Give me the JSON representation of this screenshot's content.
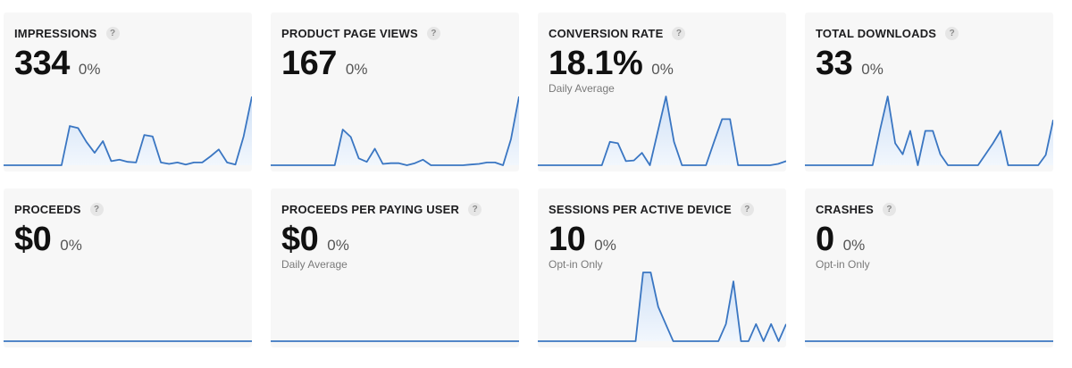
{
  "colors": {
    "card_background": "#f7f7f7",
    "line": "#3a76c2",
    "fill_top": "#cfe0f6",
    "fill_bottom": "#f2f7fd"
  },
  "help_icon_glyph": "?",
  "cards": [
    {
      "title": "IMPRESSIONS",
      "value": "334",
      "change": "0%",
      "subtitle": "",
      "spark": [
        0,
        0,
        0,
        0,
        0,
        0,
        0,
        0,
        0.57,
        0.54,
        0.34,
        0.18,
        0.35,
        0.06,
        0.08,
        0.05,
        0.04,
        0.44,
        0.42,
        0.04,
        0.02,
        0.04,
        0.01,
        0.04,
        0.04,
        0.13,
        0.23,
        0.04,
        0.01,
        0.42,
        1.0
      ]
    },
    {
      "title": "PRODUCT PAGE VIEWS",
      "value": "167",
      "change": "0%",
      "subtitle": "",
      "spark": [
        0,
        0,
        0,
        0,
        0,
        0,
        0,
        0,
        0,
        0.52,
        0.41,
        0.1,
        0.05,
        0.24,
        0.02,
        0.03,
        0.03,
        0,
        0.03,
        0.08,
        0,
        0,
        0,
        0,
        0,
        0.01,
        0.02,
        0.04,
        0.04,
        0,
        0.38,
        1.0
      ]
    },
    {
      "title": "CONVERSION RATE",
      "value": "18.1%",
      "change": "0%",
      "subtitle": "Daily Average",
      "spark": [
        0,
        0,
        0,
        0,
        0,
        0,
        0,
        0,
        0,
        0.34,
        0.32,
        0.06,
        0.07,
        0.18,
        0,
        0.5,
        1.0,
        0.34,
        0,
        0,
        0,
        0,
        0.34,
        0.67,
        0.67,
        0,
        0,
        0,
        0,
        0,
        0.02,
        0.06
      ]
    },
    {
      "title": "TOTAL DOWNLOADS",
      "value": "33",
      "change": "0%",
      "subtitle": "",
      "spark": [
        0,
        0,
        0,
        0,
        0,
        0,
        0,
        0,
        0,
        0,
        0.52,
        1.0,
        0.32,
        0.16,
        0.5,
        0,
        0.5,
        0.5,
        0.16,
        0,
        0,
        0,
        0,
        0,
        0.16,
        0.32,
        0.5,
        0,
        0,
        0,
        0,
        0,
        0.15,
        0.66
      ]
    },
    {
      "title": "PROCEEDS",
      "value": "$0",
      "change": "0%",
      "subtitle": "",
      "spark": [
        0,
        0
      ]
    },
    {
      "title": "PROCEEDS PER PAYING USER",
      "value": "$0",
      "change": "0%",
      "subtitle": "Daily Average",
      "spark": [
        0,
        0
      ]
    },
    {
      "title": "SESSIONS PER ACTIVE DEVICE",
      "value": "10",
      "change": "0%",
      "subtitle": "Opt-in Only",
      "spark": [
        0,
        0,
        0,
        0,
        0,
        0,
        0,
        0,
        0,
        0,
        0,
        0,
        0,
        0,
        1.0,
        1.0,
        0.5,
        0.25,
        0,
        0,
        0,
        0,
        0,
        0,
        0,
        0.25,
        0.87,
        0,
        0,
        0.25,
        0,
        0.25,
        0,
        0.25
      ]
    },
    {
      "title": "CRASHES",
      "value": "0",
      "change": "0%",
      "subtitle": "Opt-in Only",
      "spark": [
        0,
        0
      ]
    }
  ]
}
